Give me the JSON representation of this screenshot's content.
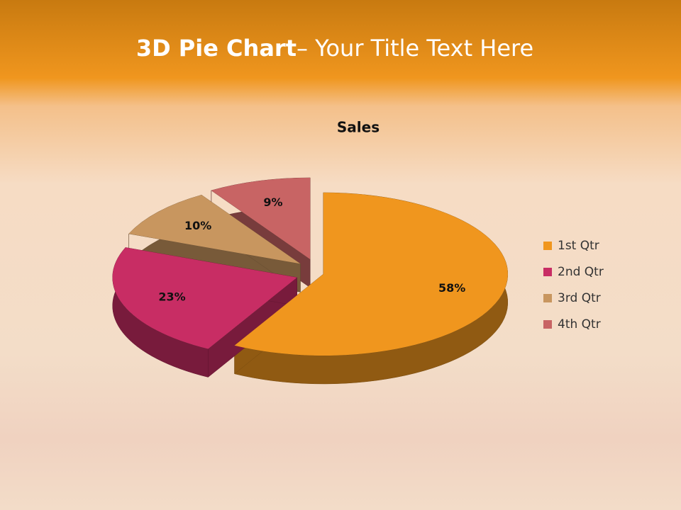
{
  "header": {
    "title_bold": "3D Pie Chart",
    "title_rest": "– Your Title Text Here"
  },
  "chart_data": {
    "type": "pie3d",
    "title": "Sales",
    "categories": [
      "1st Qtr",
      "2nd Qtr",
      "3rd Qtr",
      "4th Qtr"
    ],
    "values": [
      58,
      23,
      10,
      9
    ],
    "value_labels": [
      "58%",
      "23%",
      "10%",
      "9%"
    ],
    "colors": [
      "#f0961e",
      "#c82d64",
      "#c8965f",
      "#c86464"
    ],
    "legend": "right"
  }
}
